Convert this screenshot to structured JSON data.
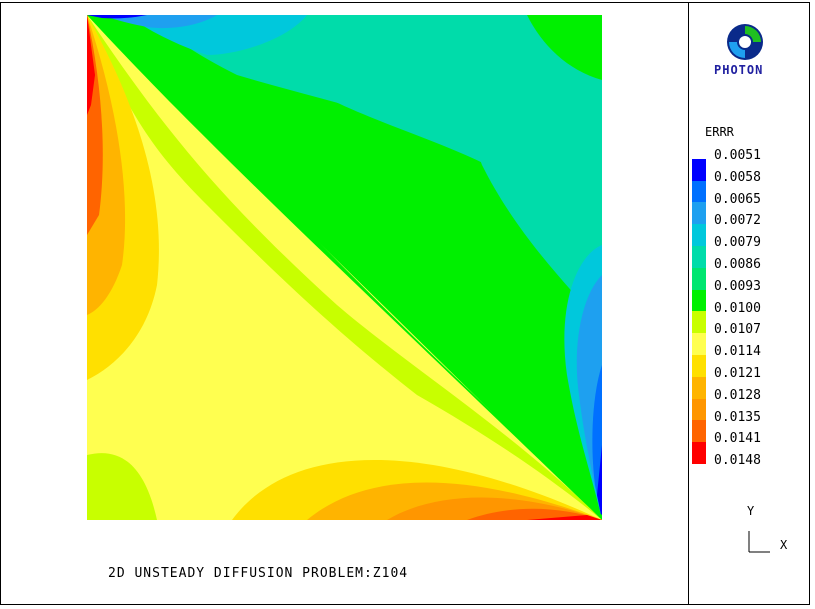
{
  "caption": "2D UNSTEADY DIFFUSION PROBLEM:Z104",
  "logo_text": "PHOTON",
  "legend": {
    "title": "ERRR",
    "levels": [
      {
        "label": "0.0051"
      },
      {
        "label": "0.0058",
        "color": "#0000ff"
      },
      {
        "label": "0.0065",
        "color": "#0070ff"
      },
      {
        "label": "0.0072",
        "color": "#1ea0f0"
      },
      {
        "label": "0.0079",
        "color": "#00c8dc"
      },
      {
        "label": "0.0086",
        "color": "#00dcaa"
      },
      {
        "label": "0.0093",
        "color": "#00e670"
      },
      {
        "label": "0.0100",
        "color": "#00f000"
      },
      {
        "label": "0.0107",
        "color": "#c8ff00"
      },
      {
        "label": "0.0114",
        "color": "#ffff50"
      },
      {
        "label": "0.0121",
        "color": "#ffe000"
      },
      {
        "label": "0.0128",
        "color": "#ffb400"
      },
      {
        "label": "0.0135",
        "color": "#ff9600"
      },
      {
        "label": "0.0141",
        "color": "#ff6400"
      },
      {
        "label": "0.0148",
        "color": "#ff0000"
      }
    ]
  },
  "axes": {
    "x": "X",
    "y": "Y"
  }
}
